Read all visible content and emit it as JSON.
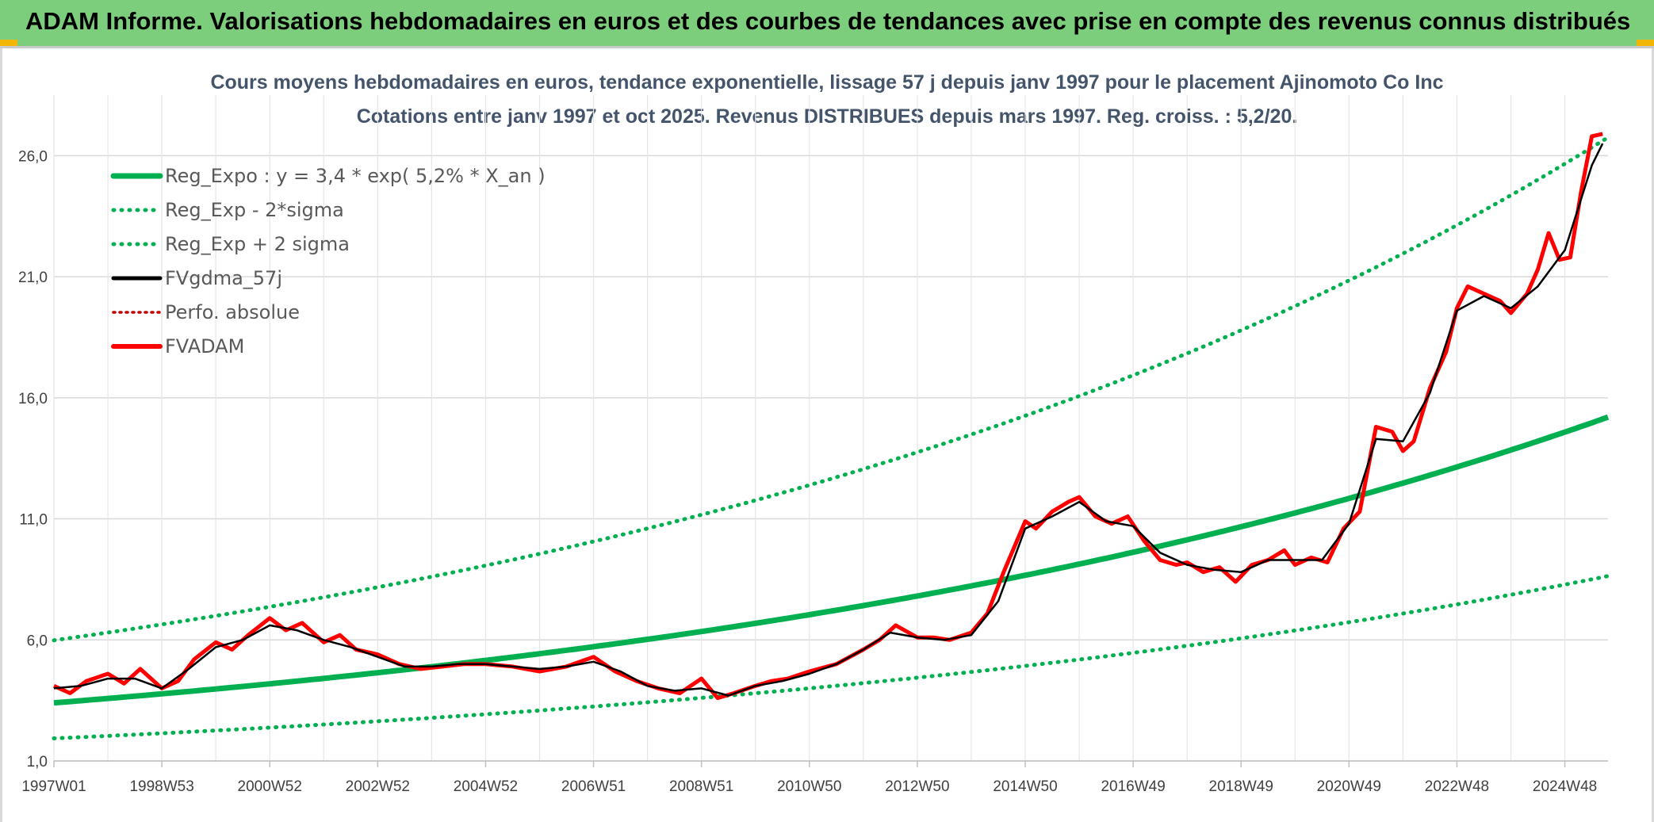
{
  "banner": {
    "title": "ADAM Informe. Valorisations hebdomadaires en euros et des courbes de tendances avec prise en compte des revenus connus distribués"
  },
  "colors": {
    "banner": "#7ccd7c",
    "regression": "#00b050",
    "fvadam": "#ff0000",
    "fvgdma": "#000000",
    "perfo": "#c00000"
  },
  "chart_data": {
    "type": "line",
    "title": "Cours moyens hebdomadaires en euros, tendance exponentielle, lissage 57 j depuis janv 1997 pour le placement Ajinomoto Co Inc",
    "subtitle": "Cotations entre janv 1997 et oct 2025. Revenus DISTRIBUES depuis mars 1997. Reg. croiss. : 5,2/20.",
    "xlabel": "",
    "ylabel": "",
    "x_range": [
      1997.0,
      2025.8
    ],
    "y_range": [
      1.0,
      28.5
    ],
    "y_ticks": [
      "1,0",
      "6,0",
      "11,0",
      "16,0",
      "21,0",
      "26,0"
    ],
    "x_ticks": [
      "1997W01",
      "1998W53",
      "2000W52",
      "2002W52",
      "2004W52",
      "2006W51",
      "2008W51",
      "2010W50",
      "2012W50",
      "2014W50",
      "2016W49",
      "2018W49",
      "2020W49",
      "2022W48",
      "2024W48"
    ],
    "x_tick_years": [
      1997.0,
      1999.0,
      2001.0,
      2003.0,
      2005.0,
      2007.0,
      2009.0,
      2011.0,
      2013.0,
      2015.0,
      2017.0,
      2019.0,
      2021.0,
      2023.0,
      2025.0
    ],
    "grid": true,
    "legend_position": "top-left",
    "regression": {
      "a": 3.4,
      "rate": 0.052,
      "sigma_factor": 1.76
    },
    "legend": [
      "Reg_Expo : y = 3,4 * exp( 5,2% *  X_an )",
      "Reg_Exp - 2*sigma",
      "Reg_Exp + 2 sigma",
      "FVgdma_57j",
      "Perfo. absolue",
      "FVADAM"
    ],
    "fvadam": {
      "x": [
        1997.0,
        1997.3,
        1997.6,
        1998.0,
        1998.3,
        1998.6,
        1999.0,
        1999.3,
        1999.6,
        2000.0,
        2000.3,
        2000.6,
        2001.0,
        2001.3,
        2001.6,
        2002.0,
        2002.3,
        2002.6,
        2003.0,
        2003.4,
        2003.8,
        2004.2,
        2004.6,
        2005.0,
        2005.5,
        2006.0,
        2006.5,
        2007.0,
        2007.4,
        2007.8,
        2008.2,
        2008.6,
        2009.0,
        2009.3,
        2009.6,
        2010.0,
        2010.3,
        2010.6,
        2011.0,
        2011.5,
        2012.0,
        2012.3,
        2012.6,
        2013.0,
        2013.3,
        2013.6,
        2014.0,
        2014.3,
        2014.6,
        2015.0,
        2015.2,
        2015.5,
        2015.8,
        2016.0,
        2016.3,
        2016.6,
        2016.9,
        2017.2,
        2017.5,
        2017.8,
        2018.0,
        2018.3,
        2018.6,
        2018.9,
        2019.2,
        2019.5,
        2019.8,
        2020.0,
        2020.3,
        2020.6,
        2020.9,
        2021.2,
        2021.5,
        2021.8,
        2022.0,
        2022.2,
        2022.5,
        2022.8,
        2023.0,
        2023.2,
        2023.5,
        2023.8,
        2024.0,
        2024.3,
        2024.5,
        2024.7,
        2024.9,
        2025.1,
        2025.3,
        2025.5,
        2025.7
      ],
      "y": [
        4.1,
        3.8,
        4.3,
        4.6,
        4.2,
        4.8,
        4.0,
        4.3,
        5.2,
        5.9,
        5.6,
        6.2,
        6.9,
        6.4,
        6.7,
        5.9,
        6.2,
        5.6,
        5.4,
        5.0,
        4.8,
        4.9,
        5.0,
        5.0,
        4.9,
        4.7,
        4.9,
        5.3,
        4.7,
        4.3,
        4.0,
        3.8,
        4.4,
        3.6,
        3.8,
        4.1,
        4.3,
        4.4,
        4.7,
        5.0,
        5.6,
        6.0,
        6.6,
        6.1,
        6.1,
        6.0,
        6.3,
        7.1,
        8.8,
        10.9,
        10.6,
        11.3,
        11.7,
        11.9,
        11.1,
        10.8,
        11.1,
        10.1,
        9.3,
        9.1,
        9.2,
        8.8,
        9.0,
        8.4,
        9.1,
        9.3,
        9.7,
        9.1,
        9.4,
        9.2,
        10.6,
        11.3,
        14.8,
        14.6,
        13.8,
        14.2,
        16.4,
        17.9,
        19.7,
        20.6,
        20.3,
        20.0,
        19.5,
        20.3,
        21.3,
        22.8,
        21.7,
        21.8,
        24.5,
        26.8,
        26.9
      ]
    },
    "fvgdma_57j": {
      "x": [
        1997.0,
        1997.5,
        1998.0,
        1998.5,
        1999.0,
        1999.5,
        2000.0,
        2000.5,
        2001.0,
        2001.5,
        2002.0,
        2002.5,
        2003.0,
        2003.5,
        2004.0,
        2004.5,
        2005.0,
        2005.5,
        2006.0,
        2006.5,
        2007.0,
        2007.5,
        2008.0,
        2008.5,
        2009.0,
        2009.5,
        2010.0,
        2010.5,
        2011.0,
        2011.5,
        2012.0,
        2012.5,
        2013.0,
        2013.5,
        2014.0,
        2014.5,
        2015.0,
        2015.5,
        2016.0,
        2016.5,
        2017.0,
        2017.5,
        2018.0,
        2018.5,
        2019.0,
        2019.5,
        2020.0,
        2020.5,
        2021.0,
        2021.5,
        2022.0,
        2022.5,
        2023.0,
        2023.5,
        2024.0,
        2024.5,
        2025.0,
        2025.5,
        2025.7
      ],
      "y": [
        4.0,
        4.1,
        4.4,
        4.4,
        4.0,
        4.8,
        5.7,
        6.0,
        6.6,
        6.4,
        6.0,
        5.7,
        5.3,
        4.9,
        4.9,
        5.0,
        5.0,
        4.9,
        4.8,
        4.9,
        5.1,
        4.7,
        4.1,
        3.9,
        4.0,
        3.7,
        4.1,
        4.3,
        4.6,
        5.0,
        5.6,
        6.3,
        6.1,
        6.0,
        6.2,
        7.6,
        10.6,
        11.1,
        11.7,
        10.9,
        10.7,
        9.6,
        9.1,
        8.9,
        8.8,
        9.3,
        9.3,
        9.3,
        10.8,
        14.3,
        14.2,
        16.2,
        19.6,
        20.2,
        19.7,
        20.6,
        22.1,
        25.6,
        26.5
      ]
    }
  }
}
